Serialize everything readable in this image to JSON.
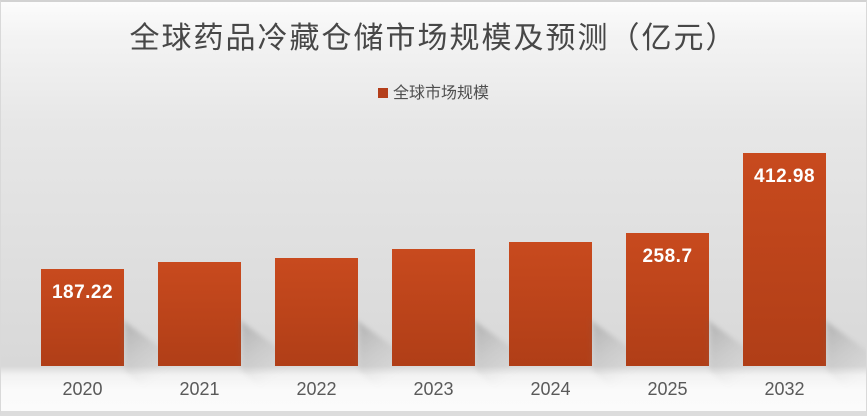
{
  "chart_data": {
    "type": "bar",
    "title": "全球药品冷藏仓储市场规模及预测（亿元）",
    "categories": [
      "2020",
      "2021",
      "2022",
      "2023",
      "2024",
      "2025",
      "2032"
    ],
    "series": [
      {
        "name": "全球市场规模",
        "values": [
          187.22,
          202,
          210,
          227,
          241,
          258.7,
          412.98
        ]
      }
    ],
    "data_labels": [
      "187.22",
      "",
      "",
      "",
      "",
      "258.7",
      "412.98"
    ],
    "xlabel": "",
    "ylabel": "",
    "ylim": [
      0,
      440
    ],
    "grid": false,
    "legend_position": "top-center",
    "colors": {
      "bar_top": "#c84a1e",
      "bar_bottom": "#b03e17",
      "legend_marker": "#b43e1a",
      "data_label": "#ffffff",
      "title_text": "#474747",
      "legend_text": "#4f4f4f",
      "tick_text": "#595959"
    }
  }
}
